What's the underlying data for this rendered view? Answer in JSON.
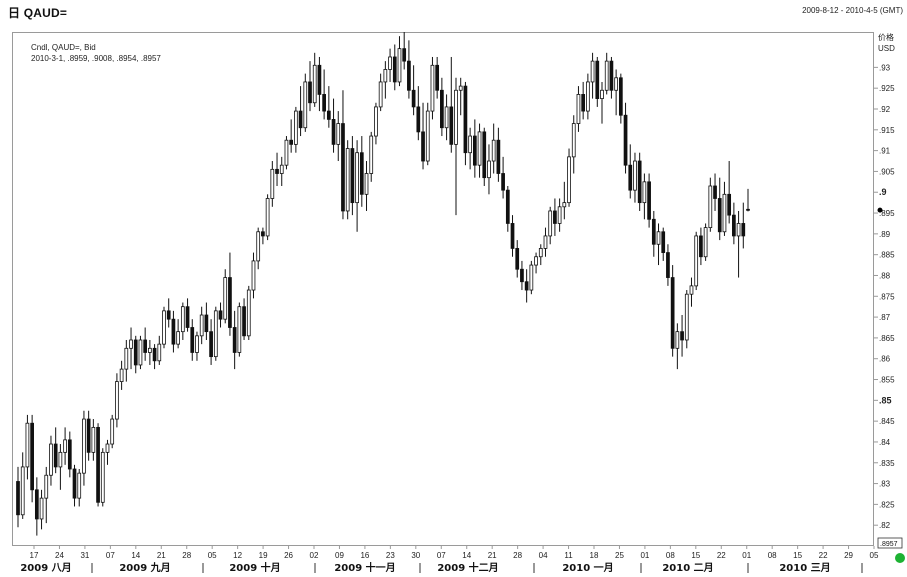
{
  "header": {
    "title": "日 QAUD=",
    "date_range": "2009-8-12 - 2010-4-5 (GMT)"
  },
  "info": {
    "line1": "Cndl, QAUD=, Bid",
    "line2": "2010-3-1, .8959, .9008, .8954, .8957"
  },
  "price_axis": {
    "title": "价格",
    "unit": "USD",
    "last_price_label": ".8957"
  },
  "colors": {
    "candle": "#111111",
    "hollow_fill": "#ffffff",
    "grid": "#9a9a9a",
    "status_dot": "#1db233"
  },
  "chart_data": {
    "type": "candlestick",
    "title": "QAUD=",
    "ylim": [
      0.815,
      0.9385
    ],
    "y_ticks": [
      {
        "value": 0.82,
        "label": ".82",
        "bold": false
      },
      {
        "value": 0.825,
        "label": ".825",
        "bold": false
      },
      {
        "value": 0.83,
        "label": ".83",
        "bold": false
      },
      {
        "value": 0.835,
        "label": ".835",
        "bold": false
      },
      {
        "value": 0.84,
        "label": ".84",
        "bold": false
      },
      {
        "value": 0.845,
        "label": ".845",
        "bold": false
      },
      {
        "value": 0.85,
        "label": ".85",
        "bold": true
      },
      {
        "value": 0.855,
        "label": ".855",
        "bold": false
      },
      {
        "value": 0.86,
        "label": ".86",
        "bold": false
      },
      {
        "value": 0.865,
        "label": ".865",
        "bold": false
      },
      {
        "value": 0.87,
        "label": ".87",
        "bold": false
      },
      {
        "value": 0.875,
        "label": ".875",
        "bold": false
      },
      {
        "value": 0.88,
        "label": ".88",
        "bold": false
      },
      {
        "value": 0.885,
        "label": ".885",
        "bold": false
      },
      {
        "value": 0.89,
        "label": ".89",
        "bold": false
      },
      {
        "value": 0.895,
        "label": ".895",
        "bold": false
      },
      {
        "value": 0.9,
        "label": ".9",
        "bold": true
      },
      {
        "value": 0.905,
        "label": ".905",
        "bold": false
      },
      {
        "value": 0.91,
        "label": ".91",
        "bold": false
      },
      {
        "value": 0.915,
        "label": ".915",
        "bold": false
      },
      {
        "value": 0.92,
        "label": ".92",
        "bold": false
      },
      {
        "value": 0.925,
        "label": ".925",
        "bold": false
      },
      {
        "value": 0.93,
        "label": ".93",
        "bold": false
      }
    ],
    "x_days": [
      "17",
      "24",
      "31",
      "07",
      "14",
      "21",
      "28",
      "05",
      "12",
      "19",
      "26",
      "02",
      "09",
      "16",
      "23",
      "30",
      "07",
      "14",
      "21",
      "28",
      "04",
      "11",
      "18",
      "25",
      "01",
      "08",
      "15",
      "22",
      "01",
      "08",
      "15",
      "22",
      "29",
      "05"
    ],
    "x_months": [
      "2009 八月",
      "2009 九月",
      "2009 十月",
      "2009 十一月",
      "2009 十二月",
      "2010 一月",
      "2010 二月",
      "2010 三月"
    ],
    "candles": [
      [
        0.8305,
        0.834,
        0.8195,
        0.8225
      ],
      [
        0.8225,
        0.8375,
        0.8215,
        0.834
      ],
      [
        0.834,
        0.8465,
        0.831,
        0.8445
      ],
      [
        0.8445,
        0.8465,
        0.8255,
        0.8285
      ],
      [
        0.8285,
        0.8315,
        0.8175,
        0.8215
      ],
      [
        0.8215,
        0.8285,
        0.819,
        0.8265
      ],
      [
        0.8265,
        0.834,
        0.8205,
        0.832
      ],
      [
        0.832,
        0.8415,
        0.8295,
        0.8395
      ],
      [
        0.8395,
        0.8435,
        0.8325,
        0.834
      ],
      [
        0.834,
        0.8395,
        0.8285,
        0.8375
      ],
      [
        0.8375,
        0.8435,
        0.8345,
        0.8405
      ],
      [
        0.8405,
        0.8425,
        0.8315,
        0.8335
      ],
      [
        0.8335,
        0.8345,
        0.8245,
        0.8265
      ],
      [
        0.8265,
        0.8335,
        0.8245,
        0.8325
      ],
      [
        0.8325,
        0.8475,
        0.8295,
        0.8455
      ],
      [
        0.8455,
        0.8475,
        0.8355,
        0.8375
      ],
      [
        0.8375,
        0.8455,
        0.8355,
        0.8435
      ],
      [
        0.8435,
        0.8445,
        0.8245,
        0.8255
      ],
      [
        0.8255,
        0.8385,
        0.8245,
        0.8375
      ],
      [
        0.8375,
        0.8405,
        0.8345,
        0.8395
      ],
      [
        0.8395,
        0.8465,
        0.8385,
        0.8455
      ],
      [
        0.8455,
        0.8565,
        0.8435,
        0.8545
      ],
      [
        0.8545,
        0.8595,
        0.8525,
        0.8575
      ],
      [
        0.8575,
        0.8645,
        0.8545,
        0.8625
      ],
      [
        0.8625,
        0.8675,
        0.8575,
        0.8645
      ],
      [
        0.8645,
        0.8655,
        0.8565,
        0.8585
      ],
      [
        0.8585,
        0.8655,
        0.8575,
        0.8645
      ],
      [
        0.8645,
        0.8675,
        0.8595,
        0.8615
      ],
      [
        0.8615,
        0.8645,
        0.8585,
        0.8625
      ],
      [
        0.8625,
        0.8635,
        0.8575,
        0.8595
      ],
      [
        0.8595,
        0.8655,
        0.8585,
        0.8635
      ],
      [
        0.8635,
        0.8725,
        0.8625,
        0.8715
      ],
      [
        0.8715,
        0.8745,
        0.8675,
        0.8695
      ],
      [
        0.8695,
        0.8715,
        0.8615,
        0.8635
      ],
      [
        0.8635,
        0.8695,
        0.8625,
        0.8665
      ],
      [
        0.8665,
        0.8735,
        0.8645,
        0.8725
      ],
      [
        0.8725,
        0.8745,
        0.8665,
        0.8675
      ],
      [
        0.8675,
        0.8695,
        0.8595,
        0.8615
      ],
      [
        0.8615,
        0.8665,
        0.8595,
        0.8655
      ],
      [
        0.8655,
        0.8725,
        0.8635,
        0.8705
      ],
      [
        0.8705,
        0.8735,
        0.8645,
        0.8665
      ],
      [
        0.8665,
        0.8695,
        0.8585,
        0.8605
      ],
      [
        0.8605,
        0.8725,
        0.8595,
        0.8715
      ],
      [
        0.8715,
        0.8735,
        0.8675,
        0.8695
      ],
      [
        0.8695,
        0.8815,
        0.8685,
        0.8795
      ],
      [
        0.8795,
        0.8855,
        0.8655,
        0.8675
      ],
      [
        0.8675,
        0.8715,
        0.8575,
        0.8615
      ],
      [
        0.8615,
        0.8735,
        0.8605,
        0.8725
      ],
      [
        0.8725,
        0.8745,
        0.8645,
        0.8655
      ],
      [
        0.8655,
        0.8775,
        0.8645,
        0.8765
      ],
      [
        0.8765,
        0.8855,
        0.8745,
        0.8835
      ],
      [
        0.8835,
        0.8915,
        0.8815,
        0.8905
      ],
      [
        0.8905,
        0.8915,
        0.8875,
        0.8895
      ],
      [
        0.8895,
        0.8995,
        0.8885,
        0.8985
      ],
      [
        0.8985,
        0.9075,
        0.8965,
        0.9055
      ],
      [
        0.9055,
        0.9095,
        0.9015,
        0.9045
      ],
      [
        0.9045,
        0.9085,
        0.9015,
        0.9065
      ],
      [
        0.9065,
        0.9135,
        0.9055,
        0.9125
      ],
      [
        0.9125,
        0.9175,
        0.9095,
        0.9115
      ],
      [
        0.9115,
        0.9205,
        0.9095,
        0.9195
      ],
      [
        0.9195,
        0.9255,
        0.9135,
        0.9155
      ],
      [
        0.9155,
        0.9285,
        0.9145,
        0.9265
      ],
      [
        0.9265,
        0.9315,
        0.9195,
        0.9215
      ],
      [
        0.9215,
        0.9335,
        0.9205,
        0.9305
      ],
      [
        0.9305,
        0.9325,
        0.9195,
        0.9235
      ],
      [
        0.9235,
        0.9295,
        0.9175,
        0.9195
      ],
      [
        0.9195,
        0.9255,
        0.9155,
        0.9175
      ],
      [
        0.9175,
        0.9225,
        0.9095,
        0.9115
      ],
      [
        0.9115,
        0.9195,
        0.9075,
        0.9165
      ],
      [
        0.9165,
        0.9245,
        0.8935,
        0.8955
      ],
      [
        0.8955,
        0.9125,
        0.8935,
        0.9105
      ],
      [
        0.9105,
        0.9135,
        0.8945,
        0.8975
      ],
      [
        0.8975,
        0.9125,
        0.8905,
        0.9095
      ],
      [
        0.9095,
        0.9135,
        0.8965,
        0.8995
      ],
      [
        0.8995,
        0.9075,
        0.8955,
        0.9045
      ],
      [
        0.9045,
        0.9145,
        0.9025,
        0.9135
      ],
      [
        0.9135,
        0.9215,
        0.9115,
        0.9205
      ],
      [
        0.9205,
        0.9285,
        0.9195,
        0.9265
      ],
      [
        0.9265,
        0.9315,
        0.9225,
        0.9295
      ],
      [
        0.9295,
        0.9345,
        0.9265,
        0.9325
      ],
      [
        0.9325,
        0.9355,
        0.9245,
        0.9265
      ],
      [
        0.9265,
        0.9375,
        0.9255,
        0.9345
      ],
      [
        0.9345,
        0.9385,
        0.9295,
        0.9315
      ],
      [
        0.9315,
        0.9365,
        0.9225,
        0.9245
      ],
      [
        0.9245,
        0.9305,
        0.9185,
        0.9205
      ],
      [
        0.9205,
        0.9255,
        0.9125,
        0.9145
      ],
      [
        0.9145,
        0.9215,
        0.9055,
        0.9075
      ],
      [
        0.9075,
        0.9215,
        0.9065,
        0.9195
      ],
      [
        0.9195,
        0.9325,
        0.9175,
        0.9305
      ],
      [
        0.9305,
        0.9325,
        0.9225,
        0.9245
      ],
      [
        0.9245,
        0.9275,
        0.9135,
        0.9155
      ],
      [
        0.9155,
        0.9235,
        0.9125,
        0.9205
      ],
      [
        0.9205,
        0.9325,
        0.9095,
        0.9115
      ],
      [
        0.9115,
        0.9275,
        0.8945,
        0.9245
      ],
      [
        0.9245,
        0.9275,
        0.9185,
        0.9255
      ],
      [
        0.9255,
        0.9265,
        0.9065,
        0.9095
      ],
      [
        0.9095,
        0.9155,
        0.9055,
        0.9135
      ],
      [
        0.9135,
        0.9175,
        0.9035,
        0.9065
      ],
      [
        0.9065,
        0.9165,
        0.9035,
        0.9145
      ],
      [
        0.9145,
        0.9155,
        0.9015,
        0.9035
      ],
      [
        0.9035,
        0.9115,
        0.8995,
        0.9075
      ],
      [
        0.9075,
        0.9165,
        0.9045,
        0.9125
      ],
      [
        0.9125,
        0.9155,
        0.9025,
        0.9045
      ],
      [
        0.9045,
        0.9085,
        0.8985,
        0.9005
      ],
      [
        0.9005,
        0.9015,
        0.8905,
        0.8925
      ],
      [
        0.8925,
        0.8945,
        0.8845,
        0.8865
      ],
      [
        0.8865,
        0.8885,
        0.8795,
        0.8815
      ],
      [
        0.8815,
        0.8835,
        0.8765,
        0.8785
      ],
      [
        0.8785,
        0.8815,
        0.8735,
        0.8765
      ],
      [
        0.8765,
        0.8835,
        0.8755,
        0.8825
      ],
      [
        0.8825,
        0.8855,
        0.8805,
        0.8845
      ],
      [
        0.8845,
        0.8875,
        0.8825,
        0.8865
      ],
      [
        0.8865,
        0.8915,
        0.8845,
        0.8895
      ],
      [
        0.8895,
        0.8965,
        0.8875,
        0.8955
      ],
      [
        0.8955,
        0.8985,
        0.8895,
        0.8925
      ],
      [
        0.8925,
        0.8985,
        0.8905,
        0.8965
      ],
      [
        0.8965,
        0.9025,
        0.8935,
        0.8975
      ],
      [
        0.8975,
        0.9105,
        0.8965,
        0.9085
      ],
      [
        0.9085,
        0.9185,
        0.9045,
        0.9165
      ],
      [
        0.9165,
        0.9255,
        0.9145,
        0.9235
      ],
      [
        0.9235,
        0.9265,
        0.9175,
        0.9195
      ],
      [
        0.9195,
        0.9285,
        0.9175,
        0.9265
      ],
      [
        0.9265,
        0.9335,
        0.9225,
        0.9315
      ],
      [
        0.9315,
        0.9325,
        0.9205,
        0.9225
      ],
      [
        0.9225,
        0.9265,
        0.9165,
        0.9245
      ],
      [
        0.9245,
        0.9335,
        0.9235,
        0.9315
      ],
      [
        0.9315,
        0.9325,
        0.9225,
        0.9245
      ],
      [
        0.9245,
        0.9295,
        0.9185,
        0.9275
      ],
      [
        0.9275,
        0.9285,
        0.9165,
        0.9185
      ],
      [
        0.9185,
        0.9215,
        0.9045,
        0.9065
      ],
      [
        0.9065,
        0.9115,
        0.8985,
        0.9005
      ],
      [
        0.9005,
        0.9095,
        0.8975,
        0.9075
      ],
      [
        0.9075,
        0.9095,
        0.8955,
        0.8975
      ],
      [
        0.8975,
        0.9045,
        0.8935,
        0.9025
      ],
      [
        0.9025,
        0.9045,
        0.8915,
        0.8935
      ],
      [
        0.8935,
        0.8955,
        0.8845,
        0.8875
      ],
      [
        0.8875,
        0.8925,
        0.8825,
        0.8905
      ],
      [
        0.8905,
        0.8915,
        0.8835,
        0.8855
      ],
      [
        0.8855,
        0.8875,
        0.8775,
        0.8795
      ],
      [
        0.8795,
        0.8825,
        0.8605,
        0.8625
      ],
      [
        0.8625,
        0.8685,
        0.8575,
        0.8665
      ],
      [
        0.8665,
        0.8705,
        0.8605,
        0.8645
      ],
      [
        0.8645,
        0.8765,
        0.8625,
        0.8755
      ],
      [
        0.8755,
        0.8795,
        0.8725,
        0.8775
      ],
      [
        0.8775,
        0.8905,
        0.8765,
        0.8895
      ],
      [
        0.8895,
        0.8915,
        0.8825,
        0.8845
      ],
      [
        0.8845,
        0.8925,
        0.8835,
        0.8915
      ],
      [
        0.8915,
        0.9035,
        0.8905,
        0.9015
      ],
      [
        0.9015,
        0.9045,
        0.8955,
        0.8985
      ],
      [
        0.8985,
        0.9035,
        0.8885,
        0.8905
      ],
      [
        0.8905,
        0.9025,
        0.8895,
        0.8995
      ],
      [
        0.8995,
        0.9075,
        0.8925,
        0.8945
      ],
      [
        0.8945,
        0.8975,
        0.8875,
        0.8895
      ],
      [
        0.8895,
        0.8955,
        0.8795,
        0.8925
      ],
      [
        0.8925,
        0.8975,
        0.8865,
        0.8895
      ],
      [
        0.8959,
        0.9008,
        0.8954,
        0.8957
      ]
    ]
  }
}
